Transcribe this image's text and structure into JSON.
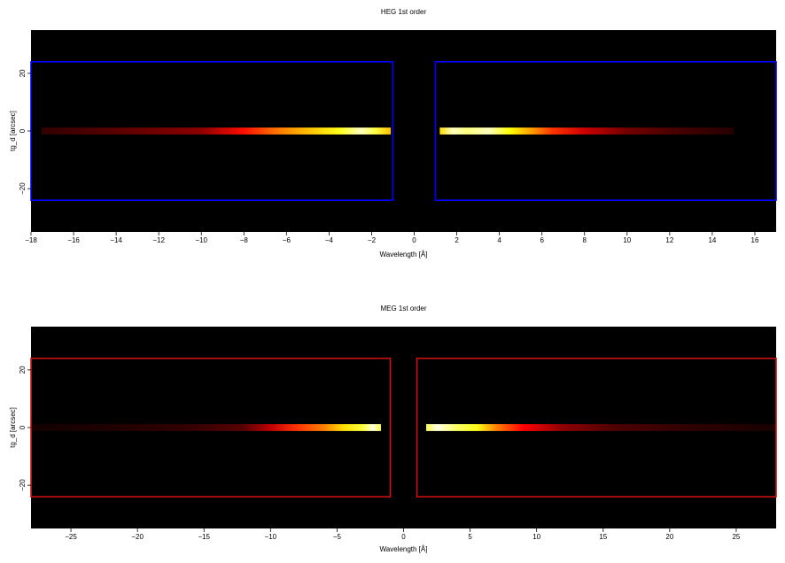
{
  "chart_data": [
    {
      "type": "heatmap",
      "title": "HEG 1st order",
      "xlabel": "Wavelength [Å]",
      "ylabel": "tg_d [arcsec]",
      "xlim": [
        -18,
        17
      ],
      "ylim": [
        -35,
        35
      ],
      "xticks": [
        -18,
        -16,
        -14,
        -12,
        -10,
        -8,
        -6,
        -4,
        -2,
        0,
        2,
        4,
        6,
        8,
        10,
        12,
        14,
        16
      ],
      "xtick_labels": [
        "−18",
        "−16",
        "−14",
        "−12",
        "−10",
        "−8",
        "−6",
        "−4",
        "−2",
        "0",
        "2",
        "4",
        "6",
        "8",
        "10",
        "12",
        "14",
        "16"
      ],
      "yticks": [
        -20,
        0,
        20
      ],
      "ytick_labels": [
        "−20",
        "0",
        "20"
      ],
      "background": "#000000",
      "box_color": "#0000ff",
      "regions": [
        {
          "x": [
            -18,
            -1
          ],
          "y": [
            -24,
            24
          ]
        },
        {
          "x": [
            1,
            17
          ],
          "y": [
            -24,
            24
          ]
        }
      ],
      "streak": {
        "y_center": 0,
        "y_halfwidth": 1.2,
        "segments": [
          {
            "x0": -17.5,
            "x1": -1.1,
            "profile": [
              [
                -17.5,
                0.08
              ],
              [
                -15,
                0.12
              ],
              [
                -12,
                0.18
              ],
              [
                -10,
                0.22
              ],
              [
                -8,
                0.42
              ],
              [
                -6.5,
                0.58
              ],
              [
                -5,
                0.7
              ],
              [
                -3.5,
                0.82
              ],
              [
                -2.5,
                0.95
              ],
              [
                -1.8,
                0.85
              ],
              [
                -1.1,
                0.7
              ]
            ]
          },
          {
            "x0": 1.2,
            "x1": 15,
            "profile": [
              [
                1.2,
                0.75
              ],
              [
                1.8,
                0.95
              ],
              [
                2.5,
                0.9
              ],
              [
                3.5,
                0.95
              ],
              [
                4.5,
                0.8
              ],
              [
                5.5,
                0.65
              ],
              [
                6.5,
                0.48
              ],
              [
                8,
                0.32
              ],
              [
                10,
                0.18
              ],
              [
                12,
                0.12
              ],
              [
                15,
                0.06
              ]
            ]
          }
        ]
      }
    },
    {
      "type": "heatmap",
      "title": "MEG 1st order",
      "xlabel": "Wavelength [Å]",
      "ylabel": "tg_d [arcsec]",
      "xlim": [
        -28,
        28
      ],
      "ylim": [
        -35,
        35
      ],
      "xticks": [
        -25,
        -20,
        -15,
        -10,
        -5,
        0,
        5,
        10,
        15,
        20,
        25
      ],
      "xtick_labels": [
        "−25",
        "−20",
        "−15",
        "−10",
        "−5",
        "0",
        "5",
        "10",
        "15",
        "20",
        "25"
      ],
      "yticks": [
        -20,
        0,
        20
      ],
      "ytick_labels": [
        "−20",
        "0",
        "20"
      ],
      "background": "#000000",
      "box_color": "#cc1111",
      "regions": [
        {
          "x": [
            -28,
            -1
          ],
          "y": [
            -24,
            24
          ]
        },
        {
          "x": [
            1,
            28
          ],
          "y": [
            -24,
            24
          ]
        }
      ],
      "streak": {
        "y_center": 0,
        "y_halfwidth": 1.2,
        "segments": [
          {
            "x0": -28,
            "x1": -1.7,
            "profile": [
              [
                -28,
                0.03
              ],
              [
                -22,
                0.05
              ],
              [
                -16,
                0.08
              ],
              [
                -12,
                0.14
              ],
              [
                -10,
                0.3
              ],
              [
                -8,
                0.48
              ],
              [
                -6,
                0.6
              ],
              [
                -4.5,
                0.75
              ],
              [
                -3,
                0.85
              ],
              [
                -2.3,
                0.98
              ],
              [
                -1.7,
                0.85
              ]
            ]
          },
          {
            "x0": 1.7,
            "x1": 28,
            "profile": [
              [
                1.7,
                0.85
              ],
              [
                2.5,
                0.98
              ],
              [
                4,
                0.88
              ],
              [
                5.5,
                0.82
              ],
              [
                7,
                0.6
              ],
              [
                9,
                0.4
              ],
              [
                12,
                0.22
              ],
              [
                16,
                0.12
              ],
              [
                22,
                0.07
              ],
              [
                28,
                0.04
              ]
            ]
          }
        ]
      }
    }
  ]
}
